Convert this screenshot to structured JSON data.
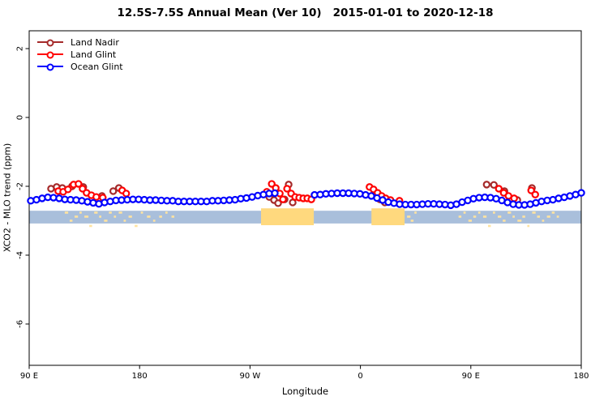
{
  "legend": {
    "items": [
      {
        "label": "Land Nadir",
        "color": "#A52A2A"
      },
      {
        "label": "Land Glint",
        "color": "#FF0000"
      },
      {
        "label": "Ocean Glint",
        "color": "#0000FF"
      }
    ]
  },
  "chart_data": {
    "type": "scatter",
    "title": "12.5S-7.5S Annual Mean (Ver 10)   2015-01-01 to 2020-12-18",
    "xlabel": "Longitude",
    "ylabel": "XCO2 - MLO trend (ppm)",
    "x_axis": {
      "range_deg": [
        90,
        540
      ],
      "ticks_deg": [
        90,
        180,
        270,
        360,
        450,
        540
      ],
      "tick_labels": [
        "90 E",
        "180",
        "90 W",
        "0",
        "90 E",
        "180"
      ]
    },
    "y_axis": {
      "range": [
        -7.2,
        2.5
      ],
      "ticks": [
        2,
        0,
        -2,
        -4,
        -6
      ]
    },
    "grid": false,
    "legend_position": "top-left",
    "series": [
      {
        "name": "Land Nadir",
        "color": "#A52A2A",
        "points": [
          [
            107.8,
            -2.07
          ],
          [
            112.4,
            -2.02
          ],
          [
            117.0,
            -2.05
          ],
          [
            124.9,
            -2.0
          ],
          [
            134.1,
            -2.02
          ],
          [
            149.3,
            -2.28
          ],
          [
            158.5,
            -2.14
          ],
          [
            163.1,
            -2.05
          ],
          [
            285.7,
            -2.31
          ],
          [
            289.6,
            -2.4
          ],
          [
            292.9,
            -2.49
          ],
          [
            298.2,
            -2.38
          ],
          [
            301.5,
            -1.95
          ],
          [
            304.8,
            -2.47
          ],
          [
            371.3,
            -2.24
          ],
          [
            375.9,
            -2.38
          ],
          [
            379.9,
            -2.47
          ],
          [
            462.9,
            -1.95
          ],
          [
            468.8,
            -1.96
          ],
          [
            477.4,
            -2.14
          ],
          [
            487.9,
            -2.4
          ],
          [
            499.8,
            -2.05
          ]
        ]
      },
      {
        "name": "Land Glint",
        "color": "#FF0000",
        "points": [
          [
            113.7,
            -2.14
          ],
          [
            117.7,
            -2.16
          ],
          [
            121.6,
            -2.09
          ],
          [
            126.2,
            -1.95
          ],
          [
            130.2,
            -1.93
          ],
          [
            133.5,
            -2.07
          ],
          [
            136.8,
            -2.19
          ],
          [
            140.7,
            -2.26
          ],
          [
            144.7,
            -2.31
          ],
          [
            150.0,
            -2.33
          ],
          [
            165.8,
            -2.12
          ],
          [
            169.1,
            -2.21
          ],
          [
            283.7,
            -2.16
          ],
          [
            287.7,
            -1.93
          ],
          [
            291.0,
            -2.05
          ],
          [
            294.3,
            -2.21
          ],
          [
            296.9,
            -2.38
          ],
          [
            300.2,
            -2.07
          ],
          [
            303.5,
            -2.21
          ],
          [
            306.8,
            -2.31
          ],
          [
            310.1,
            -2.33
          ],
          [
            313.4,
            -2.35
          ],
          [
            316.7,
            -2.35
          ],
          [
            320.0,
            -2.38
          ],
          [
            367.4,
            -2.02
          ],
          [
            370.7,
            -2.09
          ],
          [
            374.0,
            -2.19
          ],
          [
            377.3,
            -2.28
          ],
          [
            380.6,
            -2.35
          ],
          [
            384.5,
            -2.4
          ],
          [
            391.8,
            -2.42
          ],
          [
            472.8,
            -2.07
          ],
          [
            476.8,
            -2.19
          ],
          [
            480.7,
            -2.28
          ],
          [
            485.3,
            -2.35
          ],
          [
            499.2,
            -2.12
          ],
          [
            502.5,
            -2.24
          ]
        ]
      },
      {
        "name": "Ocean Glint",
        "color": "#0000FF",
        "x_start_deg": 91.3,
        "x_step_deg": 4.626,
        "values": [
          -2.42,
          -2.39,
          -2.35,
          -2.32,
          -2.33,
          -2.35,
          -2.38,
          -2.39,
          -2.4,
          -2.42,
          -2.45,
          -2.48,
          -2.51,
          -2.47,
          -2.44,
          -2.41,
          -2.4,
          -2.39,
          -2.38,
          -2.38,
          -2.39,
          -2.4,
          -2.4,
          -2.41,
          -2.42,
          -2.42,
          -2.44,
          -2.44,
          -2.44,
          -2.44,
          -2.44,
          -2.44,
          -2.42,
          -2.42,
          -2.41,
          -2.4,
          -2.39,
          -2.36,
          -2.34,
          -2.31,
          -2.27,
          -2.24,
          -2.21,
          -2.2,
          null,
          null,
          null,
          null,
          null,
          null,
          -2.25,
          -2.24,
          -2.22,
          -2.21,
          -2.2,
          -2.2,
          -2.2,
          -2.21,
          -2.22,
          -2.25,
          -2.28,
          -2.34,
          -2.4,
          -2.46,
          -2.49,
          -2.52,
          -2.53,
          -2.53,
          -2.53,
          -2.52,
          -2.51,
          -2.51,
          -2.52,
          -2.53,
          -2.55,
          -2.52,
          -2.46,
          -2.41,
          -2.36,
          -2.33,
          -2.32,
          -2.33,
          -2.36,
          -2.41,
          -2.47,
          -2.52,
          -2.54,
          -2.54,
          -2.52,
          -2.48,
          -2.44,
          -2.41,
          -2.39,
          -2.35,
          -2.32,
          -2.28,
          -2.24,
          -2.19
        ]
      }
    ],
    "map_strip": {
      "ocean_color": "#A9BFDB",
      "land_color": "#FFD97E",
      "island_color": "#FFE3A0",
      "ocean_band_ppm": [
        -2.71,
        -3.08
      ],
      "land_band_ppm": [
        -2.64,
        -3.13
      ],
      "land_blocks_deg": [
        [
          279,
          322
        ],
        [
          369,
          396
        ]
      ],
      "islands": [
        [
          119,
          2,
          0
        ],
        [
          123,
          1.5,
          2
        ],
        [
          127,
          2,
          1
        ],
        [
          131,
          1,
          0
        ],
        [
          135,
          2.5,
          1
        ],
        [
          139,
          1.5,
          3
        ],
        [
          143,
          2,
          0
        ],
        [
          147,
          1,
          1
        ],
        [
          151,
          2,
          2
        ],
        [
          155,
          1.5,
          0
        ],
        [
          159,
          1,
          1
        ],
        [
          163,
          2,
          0
        ],
        [
          167,
          1,
          2
        ],
        [
          171,
          2,
          1
        ],
        [
          176,
          1.5,
          3
        ],
        [
          181,
          1,
          0
        ],
        [
          186,
          2,
          1
        ],
        [
          191,
          1,
          2
        ],
        [
          196,
          1.5,
          1
        ],
        [
          201,
          1,
          0
        ],
        [
          206,
          1.5,
          1
        ],
        [
          398,
          2,
          1
        ],
        [
          401,
          1.5,
          2
        ],
        [
          404,
          1,
          0
        ],
        [
          440,
          1.5,
          1
        ],
        [
          444,
          1,
          0
        ],
        [
          448,
          2,
          2
        ],
        [
          452,
          1.5,
          1
        ],
        [
          456,
          1,
          0
        ],
        [
          460,
          2,
          1
        ],
        [
          464,
          1.5,
          3
        ],
        [
          468,
          1,
          0
        ],
        [
          472,
          2,
          1
        ],
        [
          476,
          1.5,
          2
        ],
        [
          480,
          2,
          0
        ],
        [
          484,
          1,
          1
        ],
        [
          488,
          2.5,
          2
        ],
        [
          492,
          1.5,
          1
        ],
        [
          496,
          1,
          3
        ],
        [
          500,
          2,
          0
        ],
        [
          504,
          1.5,
          1
        ],
        [
          508,
          1,
          2
        ],
        [
          512,
          2,
          1
        ],
        [
          516,
          1.5,
          0
        ],
        [
          520,
          1,
          1
        ]
      ]
    }
  }
}
